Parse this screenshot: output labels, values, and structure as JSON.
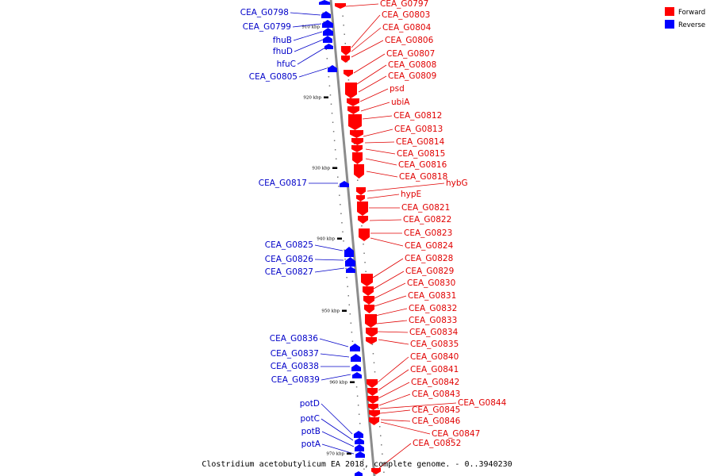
{
  "caption": "Clostridium acetobutylicum EA 2018, complete genome. - 0..3940230",
  "legend": [
    {
      "label": "Forward",
      "color": "#ff0000"
    },
    {
      "label": "Reverse",
      "color": "#0000ff"
    }
  ],
  "colors": {
    "forward": "#ff0000",
    "reverse": "#0000ff",
    "backbone": "#8c8c8c",
    "label_forward": "#e00000",
    "label_reverse": "#0000c8"
  },
  "ticks": [
    "910 kbp",
    "920 kbp",
    "930 kbp",
    "940 kbp",
    "950 kbp",
    "960 kbp",
    "970 kbp"
  ],
  "reverse_labels": [
    "CEA_G0798",
    "CEA_G0799",
    "fhuB",
    "fhuD",
    "hfuC",
    "CEA_G0805",
    "CEA_G0817",
    "CEA_G0825",
    "CEA_G0826",
    "CEA_G0827",
    "CEA_G0836",
    "CEA_G0837",
    "CEA_G0838",
    "CEA_G0839",
    "potD",
    "potC",
    "potB",
    "potA"
  ],
  "forward_labels": [
    "CEA_G0797",
    "CEA_G0803",
    "CEA_G0804",
    "CEA_G0806",
    "CEA_G0807",
    "CEA_G0808",
    "CEA_G0809",
    "psd",
    "ubiA",
    "CEA_G0812",
    "CEA_G0813",
    "CEA_G0814",
    "CEA_G0815",
    "CEA_G0816",
    "CEA_G0818",
    "hybG",
    "hypE",
    "CEA_G0821",
    "CEA_G0822",
    "CEA_G0823",
    "CEA_G0824",
    "CEA_G0828",
    "CEA_G0829",
    "CEA_G0830",
    "CEA_G0831",
    "CEA_G0832",
    "CEA_G0833",
    "CEA_G0834",
    "CEA_G0835",
    "CEA_G0840",
    "CEA_G0841",
    "CEA_G0842",
    "CEA_G0843",
    "CEA_G0844",
    "CEA_G0845",
    "CEA_G0846",
    "CEA_G0847",
    "CEA_G0852"
  ]
}
